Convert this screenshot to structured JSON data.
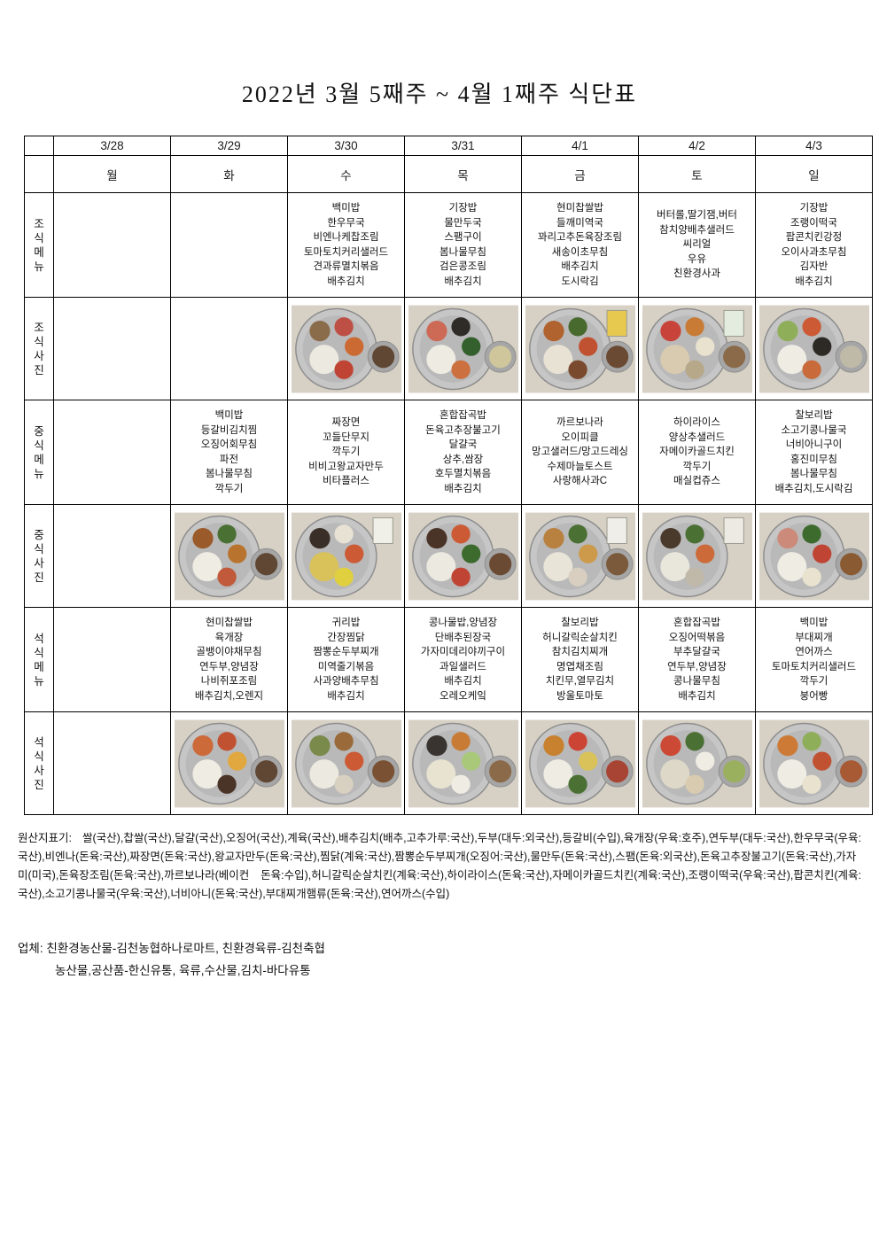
{
  "title": "2022년  3월  5째주  ~  4월  1째주  식단표",
  "table": {
    "dates": [
      "3/28",
      "3/29",
      "3/30",
      "3/31",
      "4/1",
      "4/2",
      "4/3"
    ],
    "days": [
      "월",
      "화",
      "수",
      "목",
      "금",
      "토",
      "일"
    ],
    "row_labels": {
      "breakfast_menu": "조식메뉴",
      "breakfast_photo": "조식사진",
      "lunch_menu": "중식메뉴",
      "lunch_photo": "중식사진",
      "dinner_menu": "석식메뉴",
      "dinner_photo": "석식사진"
    },
    "breakfast": [
      [],
      [],
      [
        "백미밥",
        "한우무국",
        "비엔나케찹조림",
        "토마토치커리샐러드",
        "견과류멸치볶음",
        "배추김치"
      ],
      [
        "기장밥",
        "물만두국",
        "스팸구이",
        "봄나물무침",
        "검은콩조림",
        "배추김치"
      ],
      [
        "현미찹쌀밥",
        "들깨미역국",
        "꽈리고추돈육장조림",
        "새송이초무침",
        "배추김치",
        "도시락김"
      ],
      [
        "버터롤,딸기잼,버터",
        "참치양배추샐러드",
        "씨리얼",
        "우유",
        "친환경사과"
      ],
      [
        "기장밥",
        "조랭이떡국",
        "팝콘치킨강정",
        "오이사과초무침",
        "김자반",
        "배추김치"
      ]
    ],
    "lunch": [
      [],
      [
        "백미밥",
        "등갈비김치찜",
        "오징어회무침",
        "파전",
        "봄나물무침",
        "깍두기"
      ],
      [
        "짜장면",
        "꼬들단무지",
        "깍두기",
        "비비고왕교자만두",
        "비타플러스"
      ],
      [
        "혼합잡곡밥",
        "돈육고추장불고기",
        "달걀국",
        "상추,쌈장",
        "호두멸치볶음",
        "배추김치"
      ],
      [
        "까르보나라",
        "오이피클",
        "망고샐러드/망고드레싱",
        "수제마늘토스트",
        "사랑해사과C"
      ],
      [
        "하이라이스",
        "양상추샐러드",
        "자메이카골드치킨",
        "깍두기",
        "매실컵쥬스"
      ],
      [
        "찰보리밥",
        "소고기콩나물국",
        "너비아니구이",
        "홍진미무침",
        "봄나물무침",
        "배추김치,도시락김"
      ]
    ],
    "dinner": [
      [],
      [
        "현미찹쌀밥",
        "육개장",
        "골뱅이야채무침",
        "연두부,양념장",
        "나비쥐포조림",
        "배추김치,오렌지"
      ],
      [
        "귀리밥",
        "간장찜닭",
        "짬뽕순두부찌개",
        "미역줄기볶음",
        "사과양배추무침",
        "배추김치"
      ],
      [
        "콩나물밥,양념장",
        "단배추된장국",
        "가자미데리야끼구이",
        "과일샐러드",
        "배추김치",
        "오레오케잌"
      ],
      [
        "찰보리밥",
        "허니갈릭순살치킨",
        "참치김치찌개",
        "명엽채조림",
        "치킨무,열무김치",
        "방울토마토"
      ],
      [
        "혼합잡곡밥",
        "오징어떡볶음",
        "부추달걀국",
        "연두부,양념장",
        "콩나물무침",
        "배추김치"
      ],
      [
        "백미밥",
        "부대찌개",
        "연어까스",
        "토마토치커리샐러드",
        "깍두기",
        "붕어빵"
      ]
    ],
    "photo_palette": {
      "background": "#d7d1c5",
      "tray": "#b9b9b9",
      "tray_rim": "#c6c6c6",
      "tray_stroke": "#8d8d8d",
      "bowl": "#a6a6a6"
    },
    "photos": {
      "breakfast": [
        null,
        null,
        {
          "items": [
            "#ece9e0",
            "#8a6b4a",
            "#bd4f44",
            "#cc6a33",
            "#c04434"
          ],
          "soup": "#5f4733",
          "carton": null
        },
        {
          "items": [
            "#eeebe2",
            "#cc6a55",
            "#2f2b27",
            "#33602c",
            "#cc7040"
          ],
          "soup": "#cfc79b",
          "carton": null
        },
        {
          "items": [
            "#e8e2d4",
            "#b0622f",
            "#496a2f",
            "#c05232",
            "#7a4a2e"
          ],
          "soup": "#6b4a33",
          "carton": "#e8c94f"
        },
        {
          "items": [
            "#d9cbb0",
            "#c8443a",
            "#c87b35",
            "#e8e2cf",
            "#b8a88a"
          ],
          "soup": "#8a6a48",
          "carton": "#e4ece0"
        },
        {
          "items": [
            "#efece3",
            "#8fae5a",
            "#cc5a35",
            "#2d2a26",
            "#c86a3a"
          ],
          "soup": "#bfb9a8",
          "carton": null
        }
      ],
      "lunch": [
        null,
        {
          "items": [
            "#efece3",
            "#9a5a2a",
            "#4a7034",
            "#b8742f",
            "#c05a3a"
          ],
          "soup": "#5f4733",
          "carton": null
        },
        {
          "items": [
            "#d9c25a",
            "#3a2f28",
            "#e8e2d4",
            "#cc5a35",
            "#e0d040"
          ],
          "soup": null,
          "carton": "#f0efe8"
        },
        {
          "items": [
            "#ece9e0",
            "#4a3428",
            "#cc5a35",
            "#3d6b2e",
            "#c04434"
          ],
          "soup": "#6b4a33",
          "carton": null
        },
        {
          "items": [
            "#e8e4d8",
            "#b8813f",
            "#4a7034",
            "#cc9a4a",
            "#d8cfc0"
          ],
          "soup": "#7a5a3a",
          "carton": "#f0eee8"
        },
        {
          "items": [
            "#e9e6dc",
            "#4a3a2c",
            "#4a7034",
            "#cc6a3a",
            "#c0b8a8"
          ],
          "soup": null,
          "carton": "#eceae2"
        },
        {
          "items": [
            "#efece3",
            "#cc8a7a",
            "#3d6b2e",
            "#c04434",
            "#e8e2cf"
          ],
          "soup": "#8a5a33",
          "carton": null
        }
      ],
      "dinner": [
        null,
        {
          "items": [
            "#efece3",
            "#cc6a3a",
            "#c05232",
            "#e0a83f",
            "#4a3428"
          ],
          "soup": "#5f4733",
          "carton": null
        },
        {
          "items": [
            "#ece9e0",
            "#7a8a4a",
            "#9a6a3a",
            "#cc5a35",
            "#d8d0c0"
          ],
          "soup": "#7a5233",
          "carton": null
        },
        {
          "items": [
            "#e8e2d0",
            "#3a3430",
            "#c87b35",
            "#aac87a",
            "#efece3"
          ],
          "soup": "#8a6a48",
          "carton": null
        },
        {
          "items": [
            "#efece3",
            "#c8822f",
            "#cc4434",
            "#d9c25a",
            "#4a7034"
          ],
          "soup": "#a84434",
          "carton": null
        },
        {
          "items": [
            "#ded8c8",
            "#cc4a35",
            "#4a7034",
            "#efece3",
            "#d9cbb0"
          ],
          "soup": "#9ab05f",
          "carton": null
        },
        {
          "items": [
            "#efece3",
            "#cc7a35",
            "#8fae5a",
            "#c05232",
            "#e8e2cf"
          ],
          "soup": "#a85a35",
          "carton": null
        }
      ]
    }
  },
  "origin": {
    "label": "원산지표기:",
    "text": "쌀(국산),찹쌀(국산),달걀(국산),오징어(국산),계육(국산),배추김치(배추,고추가루:국산),두부(대두:외국산),등갈비(수입),육개장(우육:호주),연두부(대두:국산),한우무국(우육:국산),비엔나(돈육:국산),짜장면(돈육:국산),왕교자만두(돈육:국산),찜닭(계육:국산),짬뽕순두부찌개(오징어:국산),물만두(돈육:국산),스팸(돈육:외국산),돈육고추장불고기(돈육:국산),가자미(미국),돈육장조림(돈육:국산),까르보나라(베이컨   돈육:수입),허니갈릭순살치킨(계육:국산),하이라이스(돈육:국산),자메이카골드치킨(계육:국산),조랭이떡국(우육:국산),팝콘치킨(계육:국산),소고기콩나물국(우육:국산),너비아니(돈육:국산),부대찌개햄류(돈육:국산),연어까스(수입)"
  },
  "vendors": {
    "label": "업체:",
    "line1": "친환경농산물-김천농협하나로마트,  친환경육류-김천축협",
    "line2": "농산물,공산품-한신유통,  육류,수산물,김치-바다유통"
  }
}
